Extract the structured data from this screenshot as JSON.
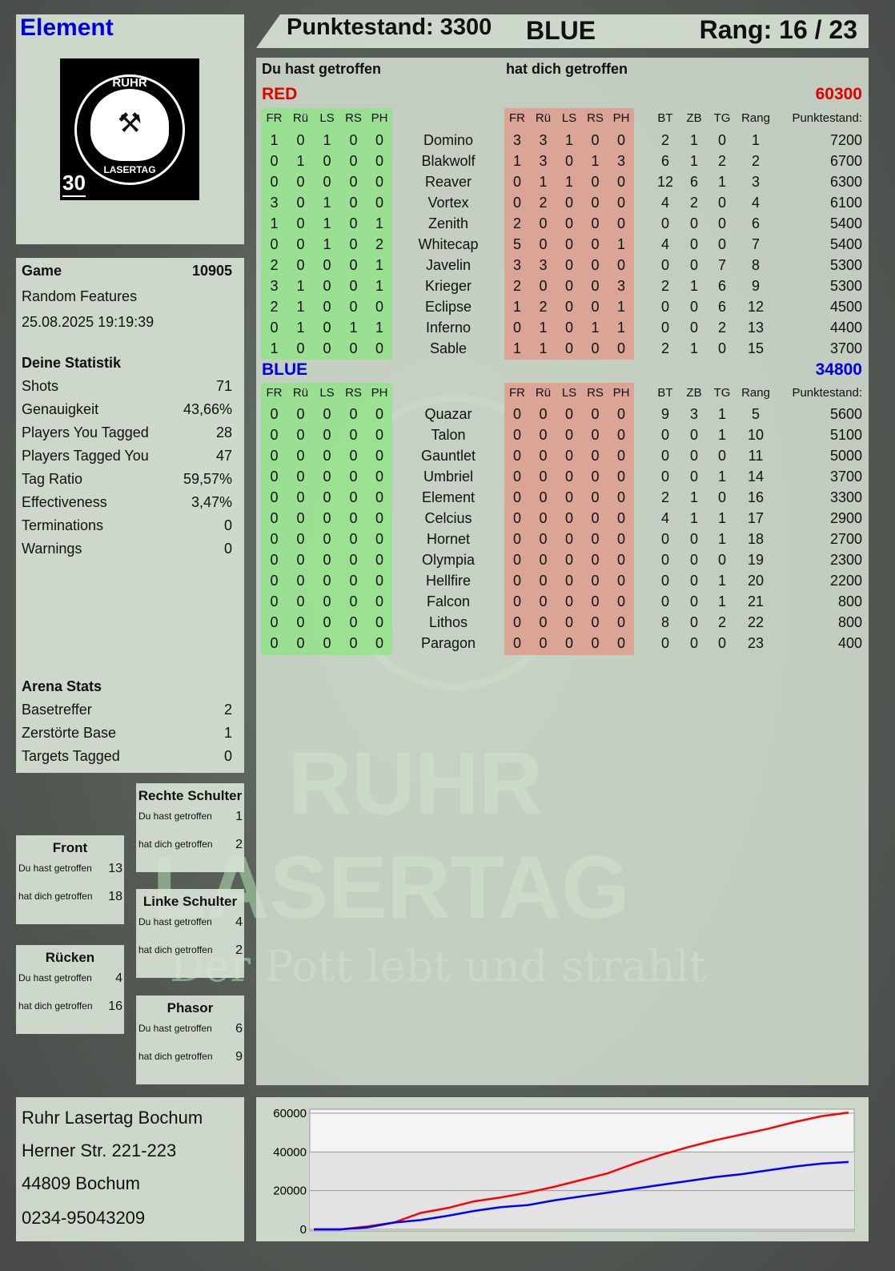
{
  "player": {
    "name": "Element",
    "score_label": "Punktestand: 3300",
    "team": "BLUE",
    "rank_label": "Rang: 16 / 23"
  },
  "logo": {
    "top": "RUHR",
    "bottom": "LASERTAG",
    "badge": "30"
  },
  "watermark": {
    "line1": "RUHR",
    "line2": "LASERTAG",
    "slogan": "Der Pott lebt und strahlt"
  },
  "colors": {
    "red": "#e00000",
    "blue": "#0000e0",
    "hit_you": "#8ce682",
    "hit_by": "#e19687"
  },
  "main": {
    "you_hit_label": "Du hast getroffen",
    "hit_you_label": "hat dich getroffen",
    "columns": [
      "FR",
      "Rü",
      "LS",
      "RS",
      "PH",
      "",
      "FR",
      "Rü",
      "LS",
      "RS",
      "PH",
      "",
      "BT",
      "ZB",
      "TG",
      "Rang",
      "Punktestand:"
    ],
    "teams": [
      {
        "name": "RED",
        "total": "60300",
        "players": [
          [
            "1",
            "0",
            "1",
            "0",
            "0",
            "Domino",
            "3",
            "3",
            "1",
            "0",
            "0",
            "2",
            "1",
            "0",
            "1",
            "7200"
          ],
          [
            "0",
            "1",
            "0",
            "0",
            "0",
            "Blakwolf",
            "1",
            "3",
            "0",
            "1",
            "3",
            "6",
            "1",
            "2",
            "2",
            "6700"
          ],
          [
            "0",
            "0",
            "0",
            "0",
            "0",
            "Reaver",
            "0",
            "1",
            "1",
            "0",
            "0",
            "12",
            "6",
            "1",
            "3",
            "6300"
          ],
          [
            "3",
            "0",
            "1",
            "0",
            "0",
            "Vortex",
            "0",
            "2",
            "0",
            "0",
            "0",
            "4",
            "2",
            "0",
            "4",
            "6100"
          ],
          [
            "1",
            "0",
            "1",
            "0",
            "1",
            "Zenith",
            "2",
            "0",
            "0",
            "0",
            "0",
            "0",
            "0",
            "0",
            "6",
            "5400"
          ],
          [
            "0",
            "0",
            "1",
            "0",
            "2",
            "Whitecap",
            "5",
            "0",
            "0",
            "0",
            "1",
            "4",
            "0",
            "0",
            "7",
            "5400"
          ],
          [
            "2",
            "0",
            "0",
            "0",
            "1",
            "Javelin",
            "3",
            "3",
            "0",
            "0",
            "0",
            "0",
            "0",
            "7",
            "8",
            "5300"
          ],
          [
            "3",
            "1",
            "0",
            "0",
            "1",
            "Krieger",
            "2",
            "0",
            "0",
            "0",
            "3",
            "2",
            "1",
            "6",
            "9",
            "5300"
          ],
          [
            "2",
            "1",
            "0",
            "0",
            "0",
            "Eclipse",
            "1",
            "2",
            "0",
            "0",
            "1",
            "0",
            "0",
            "6",
            "12",
            "4500"
          ],
          [
            "0",
            "1",
            "0",
            "1",
            "1",
            "Inferno",
            "0",
            "1",
            "0",
            "1",
            "1",
            "0",
            "0",
            "2",
            "13",
            "4400"
          ],
          [
            "1",
            "0",
            "0",
            "0",
            "0",
            "Sable",
            "1",
            "1",
            "0",
            "0",
            "0",
            "2",
            "1",
            "0",
            "15",
            "3700"
          ]
        ]
      },
      {
        "name": "BLUE",
        "total": "34800",
        "players": [
          [
            "0",
            "0",
            "0",
            "0",
            "0",
            "Quazar",
            "0",
            "0",
            "0",
            "0",
            "0",
            "9",
            "3",
            "1",
            "5",
            "5600"
          ],
          [
            "0",
            "0",
            "0",
            "0",
            "0",
            "Talon",
            "0",
            "0",
            "0",
            "0",
            "0",
            "0",
            "0",
            "1",
            "10",
            "5100"
          ],
          [
            "0",
            "0",
            "0",
            "0",
            "0",
            "Gauntlet",
            "0",
            "0",
            "0",
            "0",
            "0",
            "0",
            "0",
            "0",
            "11",
            "5000"
          ],
          [
            "0",
            "0",
            "0",
            "0",
            "0",
            "Umbriel",
            "0",
            "0",
            "0",
            "0",
            "0",
            "0",
            "0",
            "1",
            "14",
            "3700"
          ],
          [
            "0",
            "0",
            "0",
            "0",
            "0",
            "Element",
            "0",
            "0",
            "0",
            "0",
            "0",
            "2",
            "1",
            "0",
            "16",
            "3300"
          ],
          [
            "0",
            "0",
            "0",
            "0",
            "0",
            "Celcius",
            "0",
            "0",
            "0",
            "0",
            "0",
            "4",
            "1",
            "1",
            "17",
            "2900"
          ],
          [
            "0",
            "0",
            "0",
            "0",
            "0",
            "Hornet",
            "0",
            "0",
            "0",
            "0",
            "0",
            "0",
            "0",
            "1",
            "18",
            "2700"
          ],
          [
            "0",
            "0",
            "0",
            "0",
            "0",
            "Olympia",
            "0",
            "0",
            "0",
            "0",
            "0",
            "0",
            "0",
            "0",
            "19",
            "2300"
          ],
          [
            "0",
            "0",
            "0",
            "0",
            "0",
            "Hellfire",
            "0",
            "0",
            "0",
            "0",
            "0",
            "0",
            "0",
            "1",
            "20",
            "2200"
          ],
          [
            "0",
            "0",
            "0",
            "0",
            "0",
            "Falcon",
            "0",
            "0",
            "0",
            "0",
            "0",
            "0",
            "0",
            "1",
            "21",
            "800"
          ],
          [
            "0",
            "0",
            "0",
            "0",
            "0",
            "Lithos",
            "0",
            "0",
            "0",
            "0",
            "0",
            "8",
            "0",
            "2",
            "22",
            "800"
          ],
          [
            "0",
            "0",
            "0",
            "0",
            "0",
            "Paragon",
            "0",
            "0",
            "0",
            "0",
            "0",
            "0",
            "0",
            "0",
            "23",
            "400"
          ]
        ]
      }
    ]
  },
  "game": {
    "label": "Game",
    "id": "10905",
    "mode": "Random Features",
    "datetime": "25.08.2025 19:19:39"
  },
  "stats": {
    "title": "Deine Statistik",
    "items": [
      [
        "Shots",
        "71"
      ],
      [
        "Genauigkeit",
        "43,66%"
      ],
      [
        "Players You Tagged",
        "28"
      ],
      [
        "Players Tagged You",
        "47"
      ],
      [
        "Tag Ratio",
        "59,57%"
      ],
      [
        "Effectiveness",
        "3,47%"
      ],
      [
        "Terminations",
        "0"
      ],
      [
        "Warnings",
        "0"
      ]
    ]
  },
  "arena": {
    "title": "Arena Stats",
    "items": [
      [
        "Basetreffer",
        "2"
      ],
      [
        "Zerstörte Base",
        "1"
      ],
      [
        "Targets Tagged",
        "0"
      ]
    ]
  },
  "zones": [
    {
      "name": "Rechte Schulter",
      "hit": "1",
      "got": "2"
    },
    {
      "name": "Front",
      "hit": "13",
      "got": "18"
    },
    {
      "name": "Linke Schulter",
      "hit": "4",
      "got": "2"
    },
    {
      "name": "Rücken",
      "hit": "4",
      "got": "16"
    },
    {
      "name": "Phasor",
      "hit": "6",
      "got": "9"
    }
  ],
  "zone_labels": {
    "hit": "Du hast getroffen",
    "got": "hat dich getroffen"
  },
  "address": [
    "Ruhr Lasertag Bochum",
    "Herner Str. 221-223",
    "44809 Bochum",
    "0234-95043209"
  ],
  "chart_data": {
    "type": "line",
    "ylim": [
      0,
      60000
    ],
    "yticks": [
      "0",
      "20000",
      "40000",
      "60000"
    ],
    "grid": true,
    "x": [
      0,
      1,
      2,
      3,
      4,
      5,
      6,
      7,
      8,
      9,
      10,
      11,
      12,
      13,
      14,
      15,
      16,
      17,
      18,
      19,
      20
    ],
    "series": [
      {
        "color": "#ff0000",
        "values": [
          0,
          0,
          1500,
          3500,
          8500,
          11000,
          14500,
          16500,
          19000,
          22000,
          25500,
          29000,
          34000,
          38500,
          42500,
          46000,
          49000,
          52000,
          55500,
          58500,
          60300
        ]
      },
      {
        "color": "#0000ff",
        "values": [
          0,
          0,
          1000,
          3500,
          4800,
          7000,
          9500,
          11500,
          12500,
          15000,
          17000,
          19000,
          21000,
          23000,
          25000,
          27000,
          28500,
          30500,
          32500,
          34000,
          34800
        ]
      }
    ]
  }
}
